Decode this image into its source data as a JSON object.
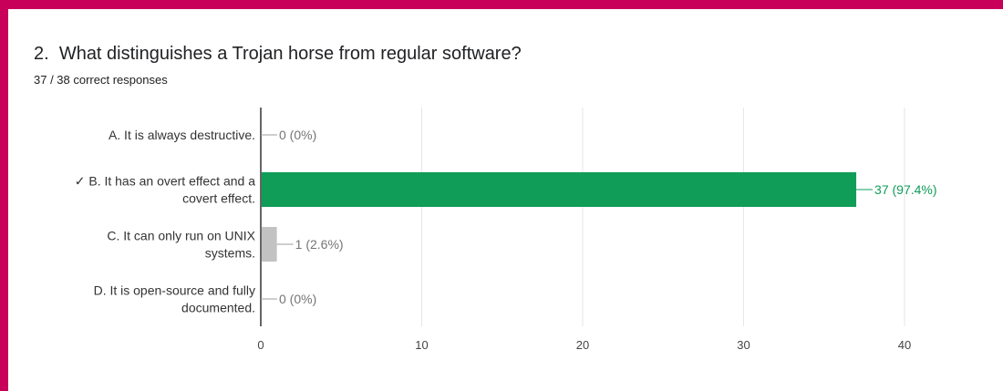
{
  "question": {
    "number": "2.",
    "text": "What distinguishes a Trojan horse from regular software?",
    "summary": "37 / 38 correct responses"
  },
  "colors": {
    "frame": "#c8005a",
    "correct_bar": "#0f9d58",
    "other_bar": "#c2c2c2",
    "grid": "#e6e6e6",
    "axis": "#333333",
    "label_text": "#333333",
    "value_text_default": "#757575",
    "value_text_correct": "#0f9d58"
  },
  "chart_data": {
    "type": "bar",
    "orientation": "horizontal",
    "categories": [
      [
        "A. It is always destructive."
      ],
      [
        "✓ B. It has an overt effect and a",
        "covert effect."
      ],
      [
        "C. It can only run on UNIX",
        "systems."
      ],
      [
        "D. It is open-source and fully",
        "documented."
      ]
    ],
    "values": [
      0,
      37,
      1,
      0
    ],
    "value_labels": [
      "0 (0%)",
      "37 (97.4%)",
      "1 (2.6%)",
      "0 (0%)"
    ],
    "correct_index": 1,
    "xlim": [
      0,
      40
    ],
    "xticks": [
      0,
      10,
      20,
      30,
      40
    ],
    "grid": true
  }
}
